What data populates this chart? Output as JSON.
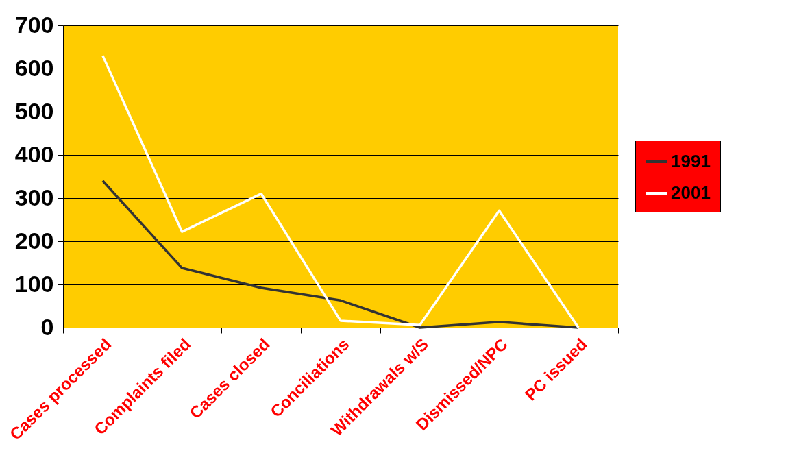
{
  "chart_data": {
    "type": "line",
    "categories": [
      "Cases processed",
      "Complaints filed",
      "Cases closed",
      "Conciliations",
      "Withdrawals w/S",
      "Dismissed/NPC",
      "PC issued"
    ],
    "series": [
      {
        "name": "1991",
        "color": "#333333",
        "values": [
          340,
          138,
          92,
          63,
          0,
          13,
          0
        ]
      },
      {
        "name": "2001",
        "color": "#ffffff",
        "values": [
          630,
          222,
          310,
          16,
          6,
          271,
          0
        ]
      }
    ],
    "ylim": [
      0,
      700
    ],
    "yticks": [
      0,
      100,
      200,
      300,
      400,
      500,
      600,
      700
    ],
    "grid": "y",
    "legend": "right",
    "marker": "none",
    "line_style": "solid"
  }
}
